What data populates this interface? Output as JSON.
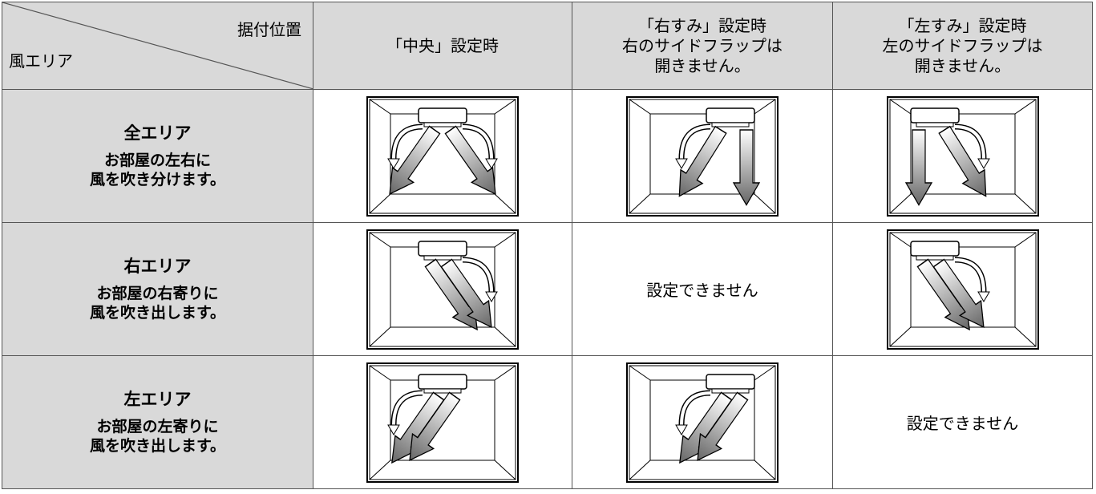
{
  "header": {
    "corner_top": "据付位置",
    "corner_bottom": "風エリア",
    "columns": [
      [
        "「中央」設定時"
      ],
      [
        "「右すみ」設定時",
        "右のサイドフラップは",
        "開きません。"
      ],
      [
        "「左すみ」設定時",
        "左のサイドフラップは",
        "開きません。"
      ]
    ]
  },
  "rows": [
    {
      "title": "全エリア",
      "desc": [
        "お部屋の左右に",
        "風を吹き分けます。"
      ]
    },
    {
      "title": "右エリア",
      "desc": [
        "お部屋の右寄りに",
        "風を吹き出します。"
      ],
      "unavailable": "設定できません"
    },
    {
      "title": "左エリア",
      "desc": [
        "お部屋の左寄りに",
        "風を吹き出します。"
      ],
      "unavailable": "設定できません"
    }
  ]
}
